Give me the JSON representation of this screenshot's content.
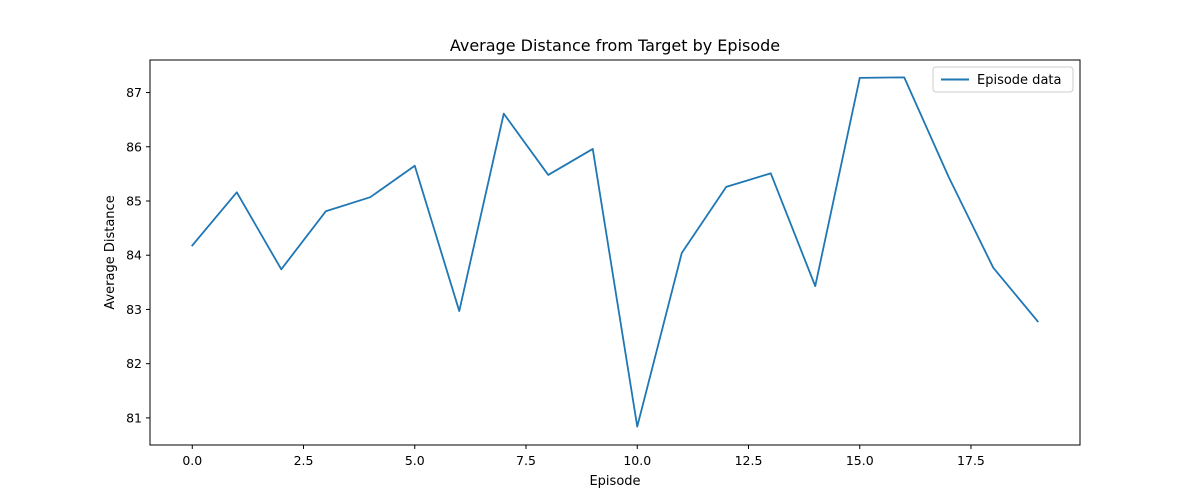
{
  "chart_data": {
    "type": "line",
    "title": "Average Distance from Target by Episode",
    "xlabel": "Episode",
    "ylabel": "Average Distance",
    "xlim": [
      -0.95,
      19.95
    ],
    "ylim": [
      80.5,
      87.6
    ],
    "xticks": [
      0.0,
      2.5,
      5.0,
      7.5,
      10.0,
      12.5,
      15.0,
      17.5
    ],
    "xtick_labels": [
      "0.0",
      "2.5",
      "5.0",
      "7.5",
      "10.0",
      "12.5",
      "15.0",
      "17.5"
    ],
    "yticks": [
      81,
      82,
      83,
      84,
      85,
      86,
      87
    ],
    "ytick_labels": [
      "81",
      "82",
      "83",
      "84",
      "85",
      "86",
      "87"
    ],
    "grid": false,
    "legend_position": "top-right",
    "series": [
      {
        "name": "Episode data",
        "color": "#1f77b4",
        "x": [
          0,
          1,
          2,
          3,
          4,
          5,
          6,
          7,
          8,
          9,
          10,
          11,
          12,
          13,
          14,
          15,
          16,
          17,
          18,
          19
        ],
        "y": [
          84.18,
          85.16,
          83.74,
          84.81,
          85.07,
          85.65,
          82.97,
          86.61,
          85.48,
          85.96,
          80.84,
          84.04,
          85.26,
          85.51,
          83.43,
          87.27,
          87.28,
          85.44,
          83.77,
          82.78
        ]
      }
    ]
  }
}
